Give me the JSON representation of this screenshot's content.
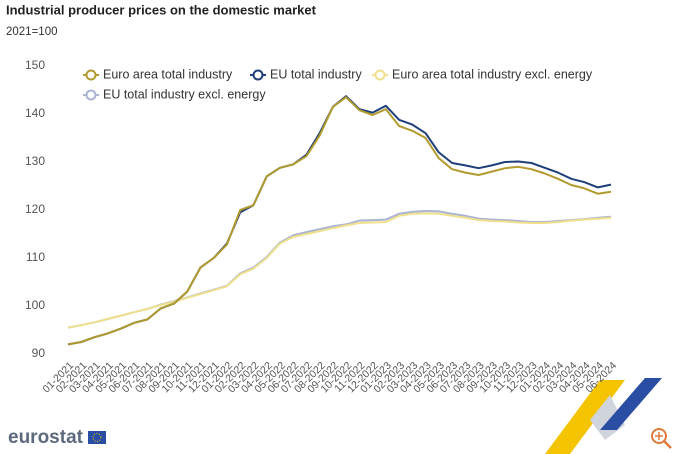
{
  "chart_data": {
    "type": "line",
    "title": "Industrial producer prices on the domestic market",
    "subtitle": "2021=100",
    "source": "eurostat",
    "categories": [
      "01-2021",
      "02-2021",
      "03-2021",
      "04-2021",
      "05-2021",
      "06-2021",
      "07-2021",
      "08-2021",
      "09-2021",
      "10-2021",
      "11-2021",
      "12-2021",
      "01-2022",
      "02-2022",
      "03-2022",
      "04-2022",
      "05-2022",
      "06-2022",
      "07-2022",
      "08-2022",
      "09-2022",
      "10-2022",
      "11-2022",
      "12-2022",
      "01-2023",
      "02-2023",
      "03-2023",
      "04-2023",
      "05-2023",
      "06-2023",
      "07-2023",
      "08-2023",
      "09-2023",
      "10-2023",
      "11-2023",
      "12-2023",
      "01-2024",
      "02-2024",
      "03-2024",
      "04-2024",
      "05-2024",
      "06-2024"
    ],
    "series": [
      {
        "name": "Euro area total industry",
        "color": "#b29b2e",
        "values": [
          92,
          92.5,
          93.5,
          94.3,
          95.3,
          96.5,
          97.2,
          99.5,
          100.5,
          103,
          108,
          110,
          112.8,
          120,
          121,
          127,
          128.8,
          129.5,
          131.2,
          135.5,
          141.5,
          143.5,
          140.8,
          139.8,
          141,
          137.5,
          136.5,
          135,
          130.8,
          128.5,
          127.8,
          127.3,
          128,
          128.7,
          129,
          128.5,
          127.6,
          126.5,
          125.2,
          124.5,
          123.4,
          123.8
        ]
      },
      {
        "name": "EU total industry",
        "color": "#1f3f7a",
        "values": [
          92,
          92.5,
          93.5,
          94.3,
          95.3,
          96.5,
          97.2,
          99.5,
          100.5,
          103,
          108,
          110,
          113,
          119.5,
          121,
          127,
          128.8,
          129.5,
          131.5,
          136,
          141.5,
          143.7,
          141,
          140.3,
          141.7,
          138.8,
          137.8,
          136,
          132,
          129.8,
          129.3,
          128.7,
          129.3,
          130,
          130.1,
          129.8,
          128.8,
          127.8,
          126.5,
          125.8,
          124.7,
          125.3
        ]
      },
      {
        "name": "Euro area total industry excl. energy",
        "color": "#f0e08c",
        "values": [
          95.5,
          96,
          96.6,
          97.3,
          98,
          98.7,
          99.4,
          100.2,
          100.9,
          101.7,
          102.5,
          103.3,
          104.1,
          106.6,
          107.8,
          110,
          113,
          114.4,
          115,
          115.6,
          116.2,
          116.8,
          117.3,
          117.4,
          117.5,
          118.8,
          119.2,
          119.3,
          119.2,
          118.8,
          118.4,
          117.9,
          117.7,
          117.6,
          117.4,
          117.3,
          117.3,
          117.5,
          117.8,
          118,
          118.2,
          118.4
        ]
      },
      {
        "name": "EU total industry excl. energy",
        "color": "#aab4d2",
        "values": [
          95.5,
          96,
          96.6,
          97.3,
          98,
          98.7,
          99.4,
          100.3,
          101,
          101.8,
          102.6,
          103.4,
          104.2,
          106.8,
          108,
          110.2,
          113.2,
          114.7,
          115.4,
          116,
          116.6,
          117,
          117.8,
          117.9,
          118,
          119.2,
          119.6,
          119.8,
          119.7,
          119.2,
          118.8,
          118.2,
          118,
          117.9,
          117.7,
          117.5,
          117.5,
          117.7,
          117.9,
          118.1,
          118.4,
          118.6
        ]
      }
    ],
    "ylim": [
      90,
      150
    ],
    "yticks": [
      90,
      100,
      110,
      120,
      130,
      140,
      150
    ],
    "grid": false
  }
}
